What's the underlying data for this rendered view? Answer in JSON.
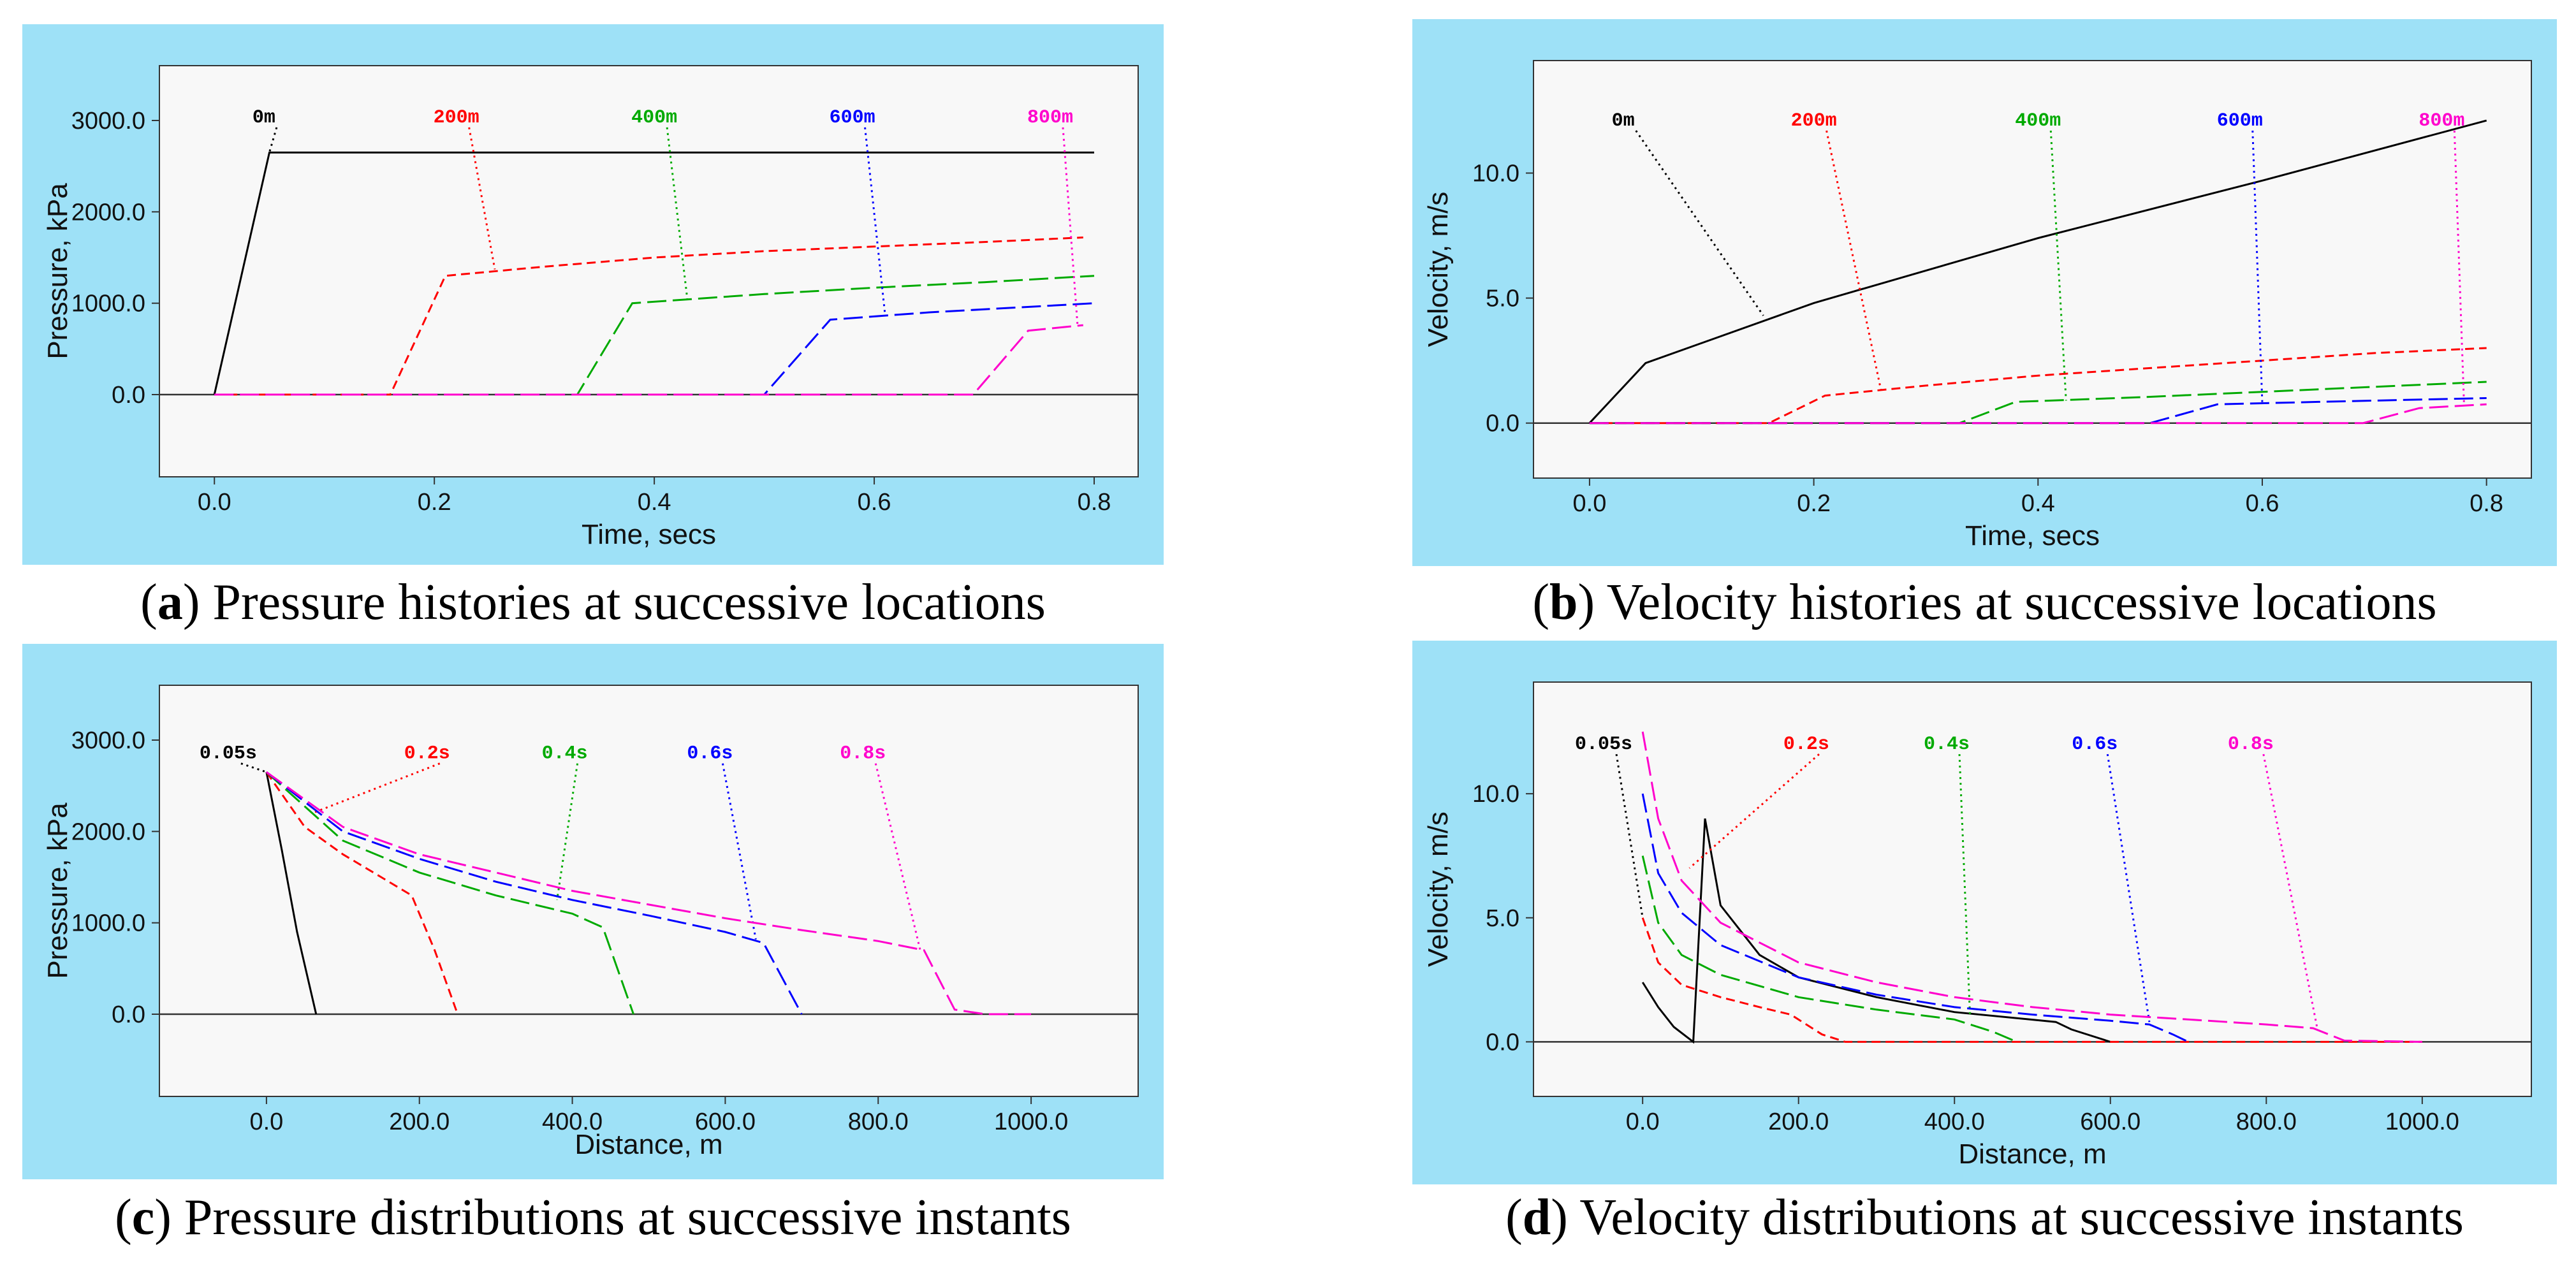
{
  "chart_data": [
    {
      "id": "a",
      "type": "line",
      "caption_letter": "a",
      "caption_text": " Pressure histories at successive locations",
      "xlabel": "Time, secs",
      "ylabel": "Pressure, kPa",
      "xlim": [
        -0.05,
        0.84
      ],
      "ylim": [
        -900,
        3600
      ],
      "xticks": [
        0.0,
        0.2,
        0.4,
        0.6,
        0.8
      ],
      "xtick_labels": [
        "0.0",
        "0.2",
        "0.4",
        "0.6",
        "0.8"
      ],
      "yticks": [
        0,
        1000,
        2000,
        3000
      ],
      "ytick_labels": [
        "0.0",
        "1000.0",
        "2000.0",
        "3000.0"
      ],
      "baseline": 0,
      "series": [
        {
          "name": "0m",
          "color": "#000000",
          "dash": "",
          "x": [
            0.0,
            0.05,
            0.8
          ],
          "y": [
            0,
            2650,
            2650
          ],
          "label_at": [
            0.045,
            2980
          ],
          "anchor": [
            0.05,
            2650
          ]
        },
        {
          "name": "200m",
          "color": "#ff0000",
          "dash": "14 8",
          "x": [
            0.0,
            0.16,
            0.21,
            0.3,
            0.4,
            0.5,
            0.6,
            0.7,
            0.79
          ],
          "y": [
            0,
            0,
            1300,
            1400,
            1500,
            1570,
            1620,
            1670,
            1720
          ],
          "label_at": [
            0.22,
            2980
          ],
          "anchor": [
            0.255,
            1370
          ]
        },
        {
          "name": "400m",
          "color": "#00aa00",
          "dash": "30 10",
          "x": [
            0.0,
            0.33,
            0.38,
            0.5,
            0.6,
            0.7,
            0.8
          ],
          "y": [
            0,
            0,
            1000,
            1100,
            1170,
            1230,
            1300
          ],
          "label_at": [
            0.4,
            2980
          ],
          "anchor": [
            0.43,
            1050
          ]
        },
        {
          "name": "600m",
          "color": "#0000ff",
          "dash": "30 10",
          "x": [
            0.0,
            0.5,
            0.56,
            0.65,
            0.8
          ],
          "y": [
            0,
            0,
            820,
            900,
            1000
          ],
          "label_at": [
            0.58,
            2980
          ],
          "anchor": [
            0.61,
            860
          ]
        },
        {
          "name": "800m",
          "color": "#ff00cc",
          "dash": "30 10",
          "x": [
            0.0,
            0.69,
            0.74,
            0.79
          ],
          "y": [
            0,
            0,
            700,
            760
          ],
          "label_at": [
            0.76,
            2980
          ],
          "anchor": [
            0.785,
            740
          ]
        }
      ]
    },
    {
      "id": "b",
      "type": "line",
      "caption_letter": "b",
      "caption_text": " Velocity histories at successive locations",
      "xlabel": "Time, secs",
      "ylabel": "Velocity, m/s",
      "xlim": [
        -0.05,
        0.84
      ],
      "ylim": [
        -2.2,
        14.5
      ],
      "xticks": [
        0.0,
        0.2,
        0.4,
        0.6,
        0.8
      ],
      "xtick_labels": [
        "0.0",
        "0.2",
        "0.4",
        "0.6",
        "0.8"
      ],
      "yticks": [
        0,
        5,
        10
      ],
      "ytick_labels": [
        "0.0",
        "5.0",
        "10.0"
      ],
      "baseline": 0,
      "series": [
        {
          "name": "0m",
          "color": "#000000",
          "dash": "",
          "x": [
            0.0,
            0.05,
            0.2,
            0.4,
            0.6,
            0.8
          ],
          "y": [
            0,
            2.4,
            4.8,
            7.4,
            9.7,
            12.1
          ],
          "label_at": [
            0.03,
            11.9
          ],
          "anchor": [
            0.155,
            4.3
          ]
        },
        {
          "name": "200m",
          "color": "#ff0000",
          "dash": "14 8",
          "x": [
            0.0,
            0.16,
            0.21,
            0.3,
            0.4,
            0.5,
            0.6,
            0.7,
            0.8
          ],
          "y": [
            0,
            0,
            1.1,
            1.5,
            1.9,
            2.2,
            2.5,
            2.8,
            3.0
          ],
          "label_at": [
            0.2,
            11.9
          ],
          "anchor": [
            0.26,
            1.3
          ]
        },
        {
          "name": "400m",
          "color": "#00aa00",
          "dash": "30 10",
          "x": [
            0.0,
            0.33,
            0.38,
            0.5,
            0.6,
            0.7,
            0.8
          ],
          "y": [
            0,
            0,
            0.85,
            1.05,
            1.25,
            1.45,
            1.65
          ],
          "label_at": [
            0.4,
            11.9
          ],
          "anchor": [
            0.425,
            0.9
          ]
        },
        {
          "name": "600m",
          "color": "#0000ff",
          "dash": "30 10",
          "x": [
            0.0,
            0.5,
            0.56,
            0.65,
            0.8
          ],
          "y": [
            0,
            0,
            0.75,
            0.85,
            1.0
          ],
          "label_at": [
            0.58,
            11.9
          ],
          "anchor": [
            0.6,
            0.8
          ]
        },
        {
          "name": "800m",
          "color": "#ff00cc",
          "dash": "30 10",
          "x": [
            0.0,
            0.69,
            0.74,
            0.8
          ],
          "y": [
            0,
            0,
            0.6,
            0.75
          ],
          "label_at": [
            0.76,
            11.9
          ],
          "anchor": [
            0.78,
            0.7
          ]
        }
      ]
    },
    {
      "id": "c",
      "type": "line",
      "caption_letter": "c",
      "caption_text": " Pressure distributions at successive instants",
      "xlabel": "Distance, m",
      "ylabel": "Pressure, kPa",
      "xlim": [
        -140,
        1140
      ],
      "ylim": [
        -900,
        3600
      ],
      "xticks": [
        0,
        200,
        400,
        600,
        800,
        1000
      ],
      "xtick_labels": [
        "0.0",
        "200.0",
        "400.0",
        "600.0",
        "800.0",
        "1000.0"
      ],
      "yticks": [
        0,
        1000,
        2000,
        3000
      ],
      "ytick_labels": [
        "0.0",
        "1000.0",
        "2000.0",
        "3000.0"
      ],
      "baseline": 0,
      "series": [
        {
          "name": "0.05s",
          "color": "#000000",
          "dash": "",
          "x": [
            0,
            20,
            40,
            65
          ],
          "y": [
            2650,
            1800,
            900,
            0
          ],
          "label_at": [
            -50,
            2800
          ],
          "anchor": [
            0,
            2650
          ]
        },
        {
          "name": "0.2s",
          "color": "#ff0000",
          "dash": "14 8",
          "x": [
            0,
            50,
            100,
            150,
            190,
            220,
            250
          ],
          "y": [
            2650,
            2050,
            1750,
            1500,
            1300,
            700,
            0
          ],
          "label_at": [
            210,
            2800
          ],
          "anchor": [
            60,
            2200
          ]
        },
        {
          "name": "0.4s",
          "color": "#00aa00",
          "dash": "30 10",
          "x": [
            0,
            100,
            200,
            300,
            400,
            440,
            480
          ],
          "y": [
            2650,
            1900,
            1550,
            1300,
            1100,
            950,
            0
          ],
          "label_at": [
            390,
            2800
          ],
          "anchor": [
            380,
            1250
          ]
        },
        {
          "name": "0.6s",
          "color": "#0000ff",
          "dash": "30 10",
          "x": [
            0,
            100,
            200,
            300,
            400,
            500,
            600,
            650,
            700
          ],
          "y": [
            2650,
            2000,
            1700,
            1450,
            1250,
            1080,
            900,
            780,
            0
          ],
          "label_at": [
            580,
            2800
          ],
          "anchor": [
            640,
            820
          ]
        },
        {
          "name": "0.8s",
          "color": "#ff00cc",
          "dash": "30 10",
          "x": [
            0,
            100,
            200,
            300,
            400,
            500,
            600,
            700,
            800,
            860,
            900,
            940,
            1000
          ],
          "y": [
            2650,
            2050,
            1750,
            1550,
            1350,
            1200,
            1050,
            920,
            800,
            700,
            50,
            0,
            0
          ],
          "label_at": [
            780,
            2800
          ],
          "anchor": [
            855,
            700
          ]
        }
      ]
    },
    {
      "id": "d",
      "type": "line",
      "caption_letter": "d",
      "caption_text": " Velocity distributions at successive instants",
      "xlabel": "Distance, m",
      "ylabel": "Velocity, m/s",
      "xlim": [
        -140,
        1140
      ],
      "ylim": [
        -2.2,
        14.5
      ],
      "xticks": [
        0,
        200,
        400,
        600,
        800,
        1000
      ],
      "xtick_labels": [
        "0.0",
        "200.0",
        "400.0",
        "600.0",
        "800.0",
        "1000.0"
      ],
      "yticks": [
        0,
        5,
        10
      ],
      "ytick_labels": [
        "0.0",
        "5.0",
        "10.0"
      ],
      "baseline": 0,
      "series": [
        {
          "name": "0.05s",
          "color": "#000000",
          "dash": "",
          "x": [
            0,
            20,
            40,
            65,
            80,
            100,
            150,
            200,
            300,
            400,
            530,
            550,
            600
          ],
          "y": [
            2.4,
            1.4,
            0.6,
            0,
            9.0,
            5.5,
            3.5,
            2.6,
            1.8,
            1.2,
            0.8,
            0.5,
            0
          ],
          "label_at": [
            -50,
            11.8
          ],
          "anchor": [
            0,
            5.0
          ]
        },
        {
          "name": "0.2s",
          "color": "#ff0000",
          "dash": "14 8",
          "x": [
            0,
            20,
            50,
            100,
            150,
            190,
            230,
            260,
            1000
          ],
          "y": [
            5.0,
            3.2,
            2.3,
            1.8,
            1.4,
            1.1,
            0.3,
            0,
            0
          ],
          "label_at": [
            210,
            11.8
          ],
          "anchor": [
            60,
            7.0
          ]
        },
        {
          "name": "0.4s",
          "color": "#00aa00",
          "dash": "30 10",
          "x": [
            0,
            20,
            50,
            100,
            200,
            300,
            400,
            450,
            480
          ],
          "y": [
            7.5,
            4.8,
            3.5,
            2.7,
            1.8,
            1.3,
            0.9,
            0.4,
            0
          ],
          "label_at": [
            390,
            11.8
          ],
          "anchor": [
            420,
            1.0
          ]
        },
        {
          "name": "0.6s",
          "color": "#0000ff",
          "dash": "30 10",
          "x": [
            0,
            20,
            50,
            100,
            200,
            300,
            400,
            500,
            600,
            650,
            680,
            700
          ],
          "y": [
            10.0,
            6.8,
            5.2,
            3.9,
            2.6,
            1.9,
            1.4,
            1.1,
            0.85,
            0.7,
            0.3,
            0
          ],
          "label_at": [
            580,
            11.8
          ],
          "anchor": [
            650,
            0.8
          ]
        },
        {
          "name": "0.8s",
          "color": "#ff00cc",
          "dash": "30 10",
          "x": [
            0,
            20,
            50,
            100,
            200,
            300,
            400,
            500,
            600,
            700,
            800,
            860,
            900,
            1000
          ],
          "y": [
            12.5,
            9.0,
            6.5,
            4.8,
            3.2,
            2.4,
            1.8,
            1.4,
            1.1,
            0.9,
            0.7,
            0.55,
            0.05,
            0
          ],
          "label_at": [
            780,
            11.8
          ],
          "anchor": [
            865,
            0.6
          ]
        }
      ]
    }
  ]
}
